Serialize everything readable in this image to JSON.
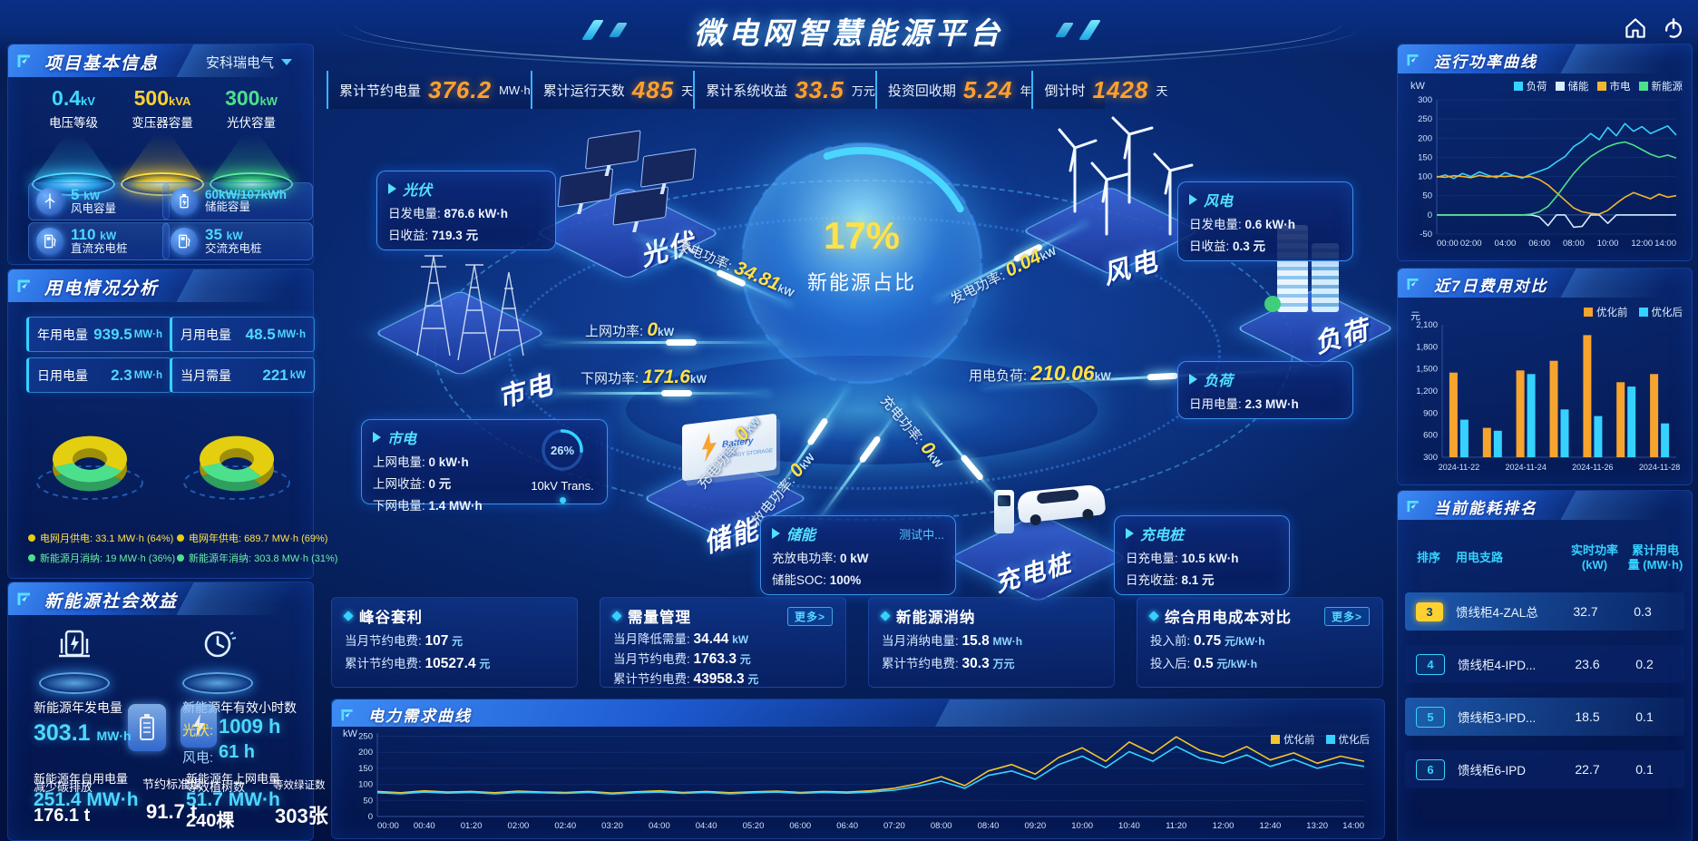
{
  "colors": {
    "accent_cyan": "#35d2ff",
    "accent_orange": "#f7a42f",
    "accent_yellow": "#ffe24a",
    "accent_green": "#4ce08c",
    "value_orange": "#ffa02e"
  },
  "header": {
    "title": "微电网智慧能源平台"
  },
  "stats_bar": {
    "items": [
      {
        "label": "累计节约电量",
        "value": "376.2",
        "unit": "MW·h"
      },
      {
        "label": "累计运行天数",
        "value": "485",
        "unit": "天"
      },
      {
        "label": "累计系统收益",
        "value": "33.5",
        "unit": "万元"
      },
      {
        "label": "投资回收期",
        "value": "5.24",
        "unit": "年"
      },
      {
        "label": "倒计时",
        "value": "1428",
        "unit": "天"
      }
    ]
  },
  "project": {
    "title": "项目基本信息",
    "company": "安科瑞电气",
    "podiums": [
      {
        "value": "0.4",
        "unit": "kV",
        "label": "电压等级"
      },
      {
        "value": "500",
        "unit": "kVA",
        "label": "变压器容量"
      },
      {
        "value": "300",
        "unit": "kW",
        "label": "光伏容量"
      }
    ],
    "cards": [
      {
        "value": "5",
        "unit": "kW",
        "label": "风电容量"
      },
      {
        "value": "60kW/107kWh",
        "unit": "",
        "label": "储能容量"
      },
      {
        "value": "110",
        "unit": "kW",
        "label": "直流充电桩"
      },
      {
        "value": "35",
        "unit": "kW",
        "label": "交流充电桩"
      }
    ]
  },
  "usage": {
    "title": "用电情况分析",
    "boxes": [
      {
        "label": "年用电量",
        "value": "939.5",
        "unit": "MW·h"
      },
      {
        "label": "月用电量",
        "value": "48.5",
        "unit": "MW·h"
      },
      {
        "label": "日用电量",
        "value": "2.3",
        "unit": "MW·h"
      },
      {
        "label": "当月需量",
        "value": "221",
        "unit": "kW"
      }
    ],
    "legend": [
      {
        "text": "电网月供电: 33.1 MW·h (64%)"
      },
      {
        "text": "新能源月消纳: 19 MW·h (36%)"
      },
      {
        "text": "电网年供电: 689.7 MW·h (69%)"
      },
      {
        "text": "新能源年消纳: 303.8 MW·h (31%)"
      }
    ]
  },
  "benefits": {
    "title": "新能源社会效益",
    "gen": {
      "label": "新能源年发电量",
      "value": "303.1",
      "unit": "MW·h"
    },
    "hours": {
      "label": "新能源年有效小时数",
      "pv_label": "光伏:",
      "pv_value": "1009 h",
      "wind_label": "风电:",
      "wind_value": "61 h"
    },
    "self": {
      "label": "新能源年自用电量",
      "value": "251.4 MW·h"
    },
    "carbon": {
      "label": "减少碳排放",
      "value": "176.1 t"
    },
    "coal": {
      "label": "节约标准煤",
      "value": "91.7 t"
    },
    "export": {
      "label": "新能源年上网电量",
      "value": "51.7 MW·h"
    },
    "trees": {
      "label": "等效植树数",
      "value": "240棵"
    },
    "certs": {
      "label": "等效绿证数",
      "value": "303张"
    }
  },
  "center": {
    "sphere": {
      "value": "17%",
      "label": "新能源占比"
    },
    "platforms": {
      "pv": "光伏",
      "grid": "市电",
      "wind": "风电",
      "load": "负荷",
      "storage": "储能",
      "charger": "充电桩"
    },
    "flows": {
      "pv_gen": {
        "label": "发电功率:",
        "value": "34.81",
        "unit": "kW"
      },
      "wind_gen": {
        "label": "发电功率:",
        "value": "0.04",
        "unit": "kW"
      },
      "to_grid": {
        "label": "上网功率:",
        "value": "0",
        "unit": "kW"
      },
      "from_grid": {
        "label": "下网功率:",
        "value": "171.6",
        "unit": "kW"
      },
      "charge": {
        "label": "充电功率:",
        "value": "0",
        "unit": "kW"
      },
      "discharge": {
        "label": "放电功率:",
        "value": "0",
        "unit": "kW"
      },
      "pile_charge": {
        "label": "充电功率:",
        "value": "0",
        "unit": "kW"
      },
      "load_power": {
        "label": "用电负荷:",
        "value": "210.06",
        "unit": "kW"
      }
    },
    "tips": {
      "pv": {
        "title": "光伏",
        "lines": [
          {
            "label": "日发电量:",
            "value": "876.6 kW·h"
          },
          {
            "label": "日收益:",
            "value": "719.3 元"
          }
        ]
      },
      "grid": {
        "title": "市电",
        "gauge_pct": "26%",
        "gauge_label": "10kV Trans.",
        "lines": [
          {
            "label": "上网电量:",
            "value": "0 kW·h"
          },
          {
            "label": "上网收益:",
            "value": "0 元"
          },
          {
            "label": "下网电量:",
            "value": "1.4 MW·h"
          }
        ]
      },
      "storage": {
        "title": "储能",
        "status": "测试中...",
        "lines": [
          {
            "label": "充放电功率:",
            "value": "0 kW"
          },
          {
            "label": "储能SOC:",
            "value": "100%"
          }
        ]
      },
      "charger": {
        "title": "充电桩",
        "lines": [
          {
            "label": "日充电量:",
            "value": "10.5 kW·h"
          },
          {
            "label": "日充收益:",
            "value": "8.1 元"
          }
        ]
      },
      "wind": {
        "title": "风电",
        "lines": [
          {
            "label": "日发电量:",
            "value": "0.6 kW·h"
          },
          {
            "label": "日收益:",
            "value": "0.3 元"
          }
        ]
      },
      "load": {
        "title": "负荷",
        "lines": [
          {
            "label": "日用电量:",
            "value": "2.3 MW·h"
          }
        ]
      }
    }
  },
  "mini_panels": [
    {
      "title": "峰谷套利",
      "more": "",
      "lines": [
        {
          "label": "当月节约电费:",
          "value": "107",
          "unit": "元"
        },
        {
          "label": "累计节约电费:",
          "value": "10527.4",
          "unit": "元"
        }
      ]
    },
    {
      "title": "需量管理",
      "more": "更多>",
      "lines": [
        {
          "label": "当月降低需量:",
          "value": "34.44",
          "unit": "kW"
        },
        {
          "label": "当月节约电费:",
          "value": "1763.3",
          "unit": "元"
        },
        {
          "label": "累计节约电费:",
          "value": "43958.3",
          "unit": "元"
        }
      ]
    },
    {
      "title": "新能源消纳",
      "more": "",
      "lines": [
        {
          "label": "当月消纳电量:",
          "value": "15.8",
          "unit": "MW·h"
        },
        {
          "label": "累计节约电费:",
          "value": "30.3",
          "unit": "万元"
        }
      ]
    },
    {
      "title": "综合用电成本对比",
      "more": "更多>",
      "lines": [
        {
          "label": "投入前:",
          "value": "0.75",
          "unit": "元/kW·h"
        },
        {
          "label": "投入后:",
          "value": "0.5",
          "unit": "元/kW·h"
        }
      ]
    }
  ],
  "demand_panel": {
    "title": "电力需求曲线"
  },
  "right": {
    "power_curve": {
      "title": "运行功率曲线"
    },
    "cost": {
      "title": "近7日费用对比"
    },
    "rank": {
      "title": "当前能耗排名",
      "headers": [
        "排序",
        "用电支路",
        "实时功率 (kW)",
        "累计用电量 (MW·h)"
      ],
      "rows": [
        {
          "rank": "3",
          "branch": "馈线柜4-ZAL总",
          "power": "32.7",
          "energy": "0.3"
        },
        {
          "rank": "4",
          "branch": "馈线柜4-IPD...",
          "power": "23.6",
          "energy": "0.2"
        },
        {
          "rank": "5",
          "branch": "馈线柜3-IPD...",
          "power": "18.5",
          "energy": "0.1"
        },
        {
          "rank": "6",
          "branch": "馈线柜6-IPD",
          "power": "22.7",
          "energy": "0.1"
        }
      ]
    }
  },
  "chart_data": [
    {
      "id": "run-power",
      "type": "line",
      "title": "运行功率曲线",
      "ylabel": "kW",
      "ylim": [
        -50,
        300
      ],
      "yticks": [
        300,
        250,
        200,
        150,
        100,
        50,
        0,
        -50
      ],
      "xticks": [
        "00:00",
        "02:00",
        "04:00",
        "06:00",
        "08:00",
        "10:00",
        "12:00",
        "14:00"
      ],
      "legend_position": "top",
      "grid": false,
      "series": [
        {
          "name": "负荷",
          "color": "#35d2ff",
          "values": [
            98,
            104,
            95,
            108,
            100,
            112,
            103,
            97,
            110,
            102,
            96,
            106,
            114,
            122,
            138,
            152,
            178,
            192,
            212,
            196,
            228,
            206,
            238,
            218,
            230,
            212,
            222,
            232,
            208
          ]
        },
        {
          "name": "储能",
          "color": "#d8ecff",
          "values": [
            0,
            0,
            0,
            0,
            0,
            0,
            0,
            0,
            0,
            0,
            0,
            0,
            -5,
            -28,
            0,
            0,
            -32,
            -30,
            0,
            0,
            -22,
            0,
            0,
            0,
            0,
            0,
            0,
            0,
            0
          ]
        },
        {
          "name": "市电",
          "color": "#f5b62e",
          "values": [
            100,
            98,
            102,
            100,
            97,
            103,
            99,
            101,
            100,
            102,
            98,
            100,
            92,
            78,
            58,
            38,
            18,
            8,
            4,
            2,
            12,
            30,
            46,
            58,
            50,
            42,
            54,
            46,
            50
          ]
        },
        {
          "name": "新能源",
          "color": "#4ce08c",
          "values": [
            0,
            0,
            0,
            0,
            0,
            0,
            0,
            0,
            0,
            0,
            0,
            2,
            8,
            22,
            48,
            78,
            108,
            132,
            152,
            166,
            178,
            186,
            190,
            182,
            170,
            158,
            150,
            156,
            148
          ]
        }
      ]
    },
    {
      "id": "cost-bars",
      "type": "bar",
      "title": "近7日费用对比",
      "ylabel": "元",
      "ylim": [
        300,
        2100
      ],
      "ytick_labels": [
        "2,100",
        "1,800",
        "1,500",
        "1,200",
        "900",
        "600",
        "300"
      ],
      "ytick_values": [
        2100,
        1800,
        1500,
        1200,
        900,
        600,
        300
      ],
      "categories": [
        "2024-11-22",
        "2024-11-23",
        "2024-11-24",
        "2024-11-25",
        "2024-11-26",
        "2024-11-27",
        "2024-11-28"
      ],
      "xtick_labels": [
        "2024-11-22",
        "2024-11-24",
        "2024-11-26",
        "2024-11-28"
      ],
      "xtick_groups": [
        0,
        2,
        4,
        6
      ],
      "legend_position": "top-right",
      "grid": false,
      "series": [
        {
          "name": "优化前",
          "color": "#f7a42f",
          "values": [
            1450,
            700,
            1480,
            1610,
            1960,
            1320,
            1430
          ]
        },
        {
          "name": "优化后",
          "color": "#35d2ff",
          "values": [
            810,
            660,
            1430,
            950,
            860,
            1260,
            760
          ]
        }
      ]
    },
    {
      "id": "demand-curve",
      "type": "line",
      "title": "电力需求曲线",
      "ylabel": "kW",
      "ylim": [
        0,
        260
      ],
      "yticks": [
        250,
        200,
        150,
        100,
        50,
        0
      ],
      "xticks": [
        "00:00",
        "00:40",
        "01:20",
        "02:00",
        "02:40",
        "03:20",
        "04:00",
        "04:40",
        "05:20",
        "06:00",
        "06:40",
        "07:20",
        "08:00",
        "08:40",
        "09:20",
        "10:00",
        "10:40",
        "11:20",
        "12:00",
        "12:40",
        "13:20",
        "14:00"
      ],
      "legend_position": "top-right",
      "grid": false,
      "series": [
        {
          "name": "优化前",
          "color": "#f5c52e",
          "values": [
            78,
            74,
            80,
            76,
            78,
            74,
            79,
            76,
            75,
            78,
            73,
            77,
            80,
            75,
            78,
            74,
            77,
            79,
            75,
            78,
            76,
            80,
            88,
            102,
            124,
            96,
            142,
            162,
            132,
            184,
            214,
            172,
            232,
            196,
            248,
            206,
            186,
            218,
            176,
            198,
            166,
            188,
            172
          ]
        },
        {
          "name": "优化后",
          "color": "#35d2ff",
          "values": [
            74,
            71,
            76,
            73,
            75,
            71,
            75,
            74,
            72,
            75,
            70,
            74,
            76,
            72,
            75,
            71,
            74,
            76,
            72,
            75,
            73,
            76,
            82,
            94,
            110,
            88,
            128,
            142,
            116,
            162,
            188,
            152,
            202,
            172,
            218,
            182,
            166,
            192,
            156,
            178,
            150,
            168,
            156
          ]
        }
      ]
    },
    {
      "id": "donut-month",
      "type": "pie",
      "values": [
        64,
        36
      ],
      "colors": [
        "#e3cf10",
        "#4ce08c"
      ],
      "labels": [
        "电网月供电",
        "新能源月消纳"
      ]
    },
    {
      "id": "donut-year",
      "type": "pie",
      "values": [
        69,
        31
      ],
      "colors": [
        "#e3cf10",
        "#4ce08c"
      ],
      "labels": [
        "电网年供电",
        "新能源年消纳"
      ]
    }
  ]
}
